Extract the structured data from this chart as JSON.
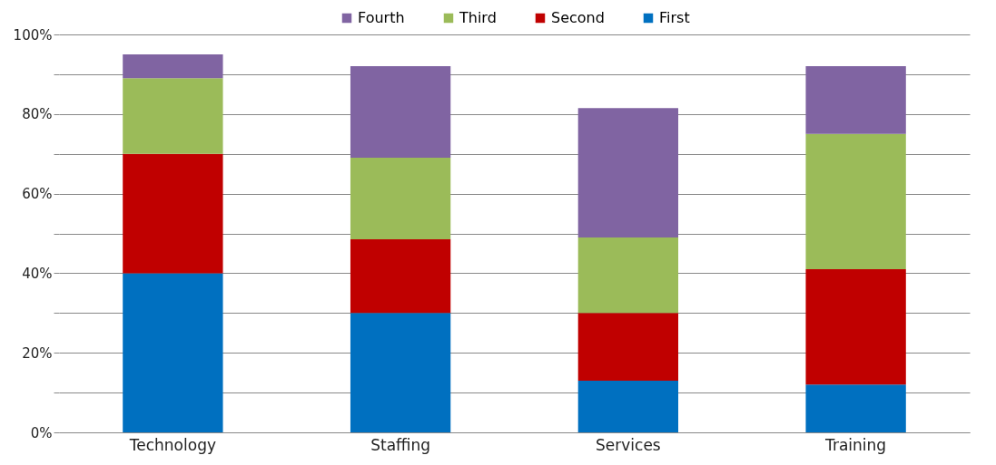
{
  "chart_data": {
    "type": "bar",
    "stacked": true,
    "categories": [
      "Technology",
      "Staffing",
      "Services",
      "Training"
    ],
    "series": [
      {
        "name": "First",
        "color": "#0070c0",
        "values": [
          40,
          30,
          13,
          12
        ]
      },
      {
        "name": "Second",
        "color": "#c00000",
        "values": [
          30,
          18.5,
          17,
          29
        ]
      },
      {
        "name": "Third",
        "color": "#9bbb59",
        "values": [
          19,
          20.5,
          19,
          34
        ]
      },
      {
        "name": "Fourth",
        "color": "#8064a2",
        "values": [
          6,
          23,
          32.5,
          17
        ]
      }
    ],
    "ylim": [
      0,
      100
    ],
    "yticks": [
      {
        "value": 0,
        "label": "0%"
      },
      {
        "value": 10,
        "label": null
      },
      {
        "value": 20,
        "label": "20%"
      },
      {
        "value": 30,
        "label": null
      },
      {
        "value": 40,
        "label": "40%"
      },
      {
        "value": 50,
        "label": null
      },
      {
        "value": 60,
        "label": "60%"
      },
      {
        "value": 70,
        "label": null
      },
      {
        "value": 80,
        "label": "80%"
      },
      {
        "value": 90,
        "label": null
      },
      {
        "value": 100,
        "label": "100%"
      }
    ],
    "grid": "y",
    "legend": "top"
  }
}
